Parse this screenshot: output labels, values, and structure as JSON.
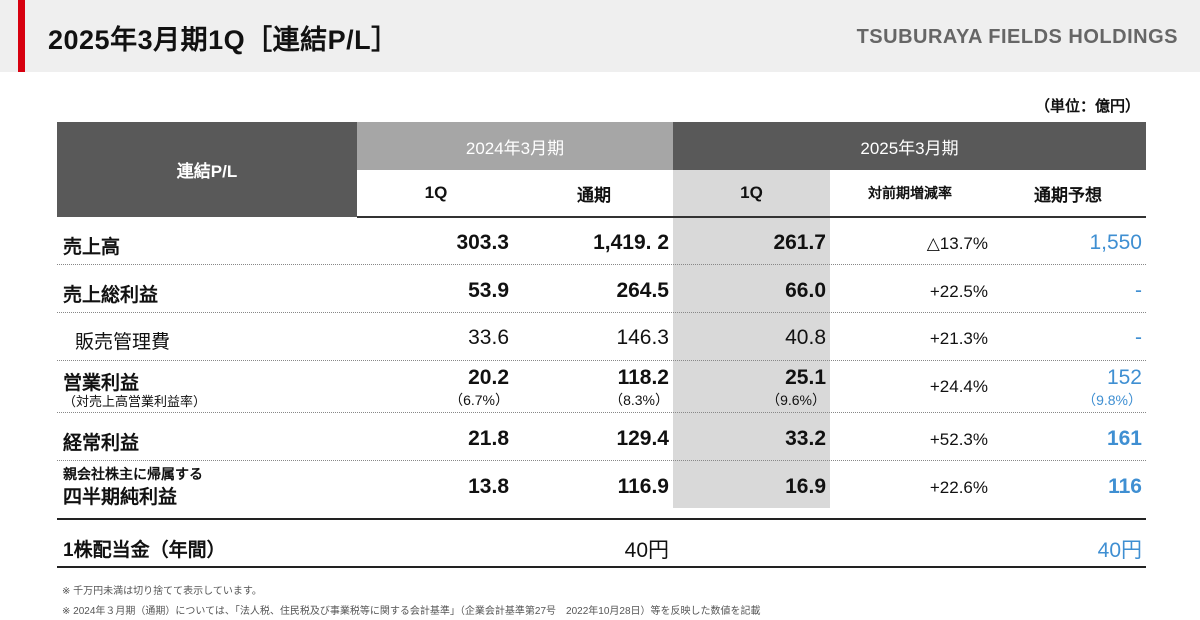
{
  "header": {
    "title": "2025年3月期1Q［連結P/L］",
    "brand": "TSUBURAYA FIELDS HOLDINGS"
  },
  "unit": "（単位：億円）",
  "table": {
    "corner": "連結P/L",
    "period_2024": "2024年3月期",
    "period_2025": "2025年3月期",
    "cols": {
      "q1_2024": "1Q",
      "full_2024": "通期",
      "q1_2025": "1Q",
      "yoy": "対前期増減率",
      "forecast": "通期予想"
    },
    "rows": {
      "sales": {
        "label": "売上高",
        "q1_2024": "303.3",
        "full_2024": "1,419. 2",
        "q1_2025": "261.7",
        "yoy": "△13.7%",
        "forecast": "1,550"
      },
      "gross": {
        "label": "売上総利益",
        "q1_2024": "53.9",
        "full_2024": "264.5",
        "q1_2025": "66.0",
        "yoy": "+22.5%",
        "forecast": "-"
      },
      "sga": {
        "label": "販売管理費",
        "q1_2024": "33.6",
        "full_2024": "146.3",
        "q1_2025": "40.8",
        "yoy": "+21.3%",
        "forecast": "-"
      },
      "operating": {
        "label": "営業利益",
        "note": "（対売上高営業利益率）",
        "q1_2024": "20.2",
        "q1_2024_rate": "（6.7%）",
        "full_2024": "118.2",
        "full_2024_rate": "（8.3%）",
        "q1_2025": "25.1",
        "q1_2025_rate": "（9.6%）",
        "yoy": "+24.4%",
        "forecast": "152",
        "forecast_rate": "（9.8%）"
      },
      "ordinary": {
        "label": "経常利益",
        "q1_2024": "21.8",
        "full_2024": "129.4",
        "q1_2025": "33.2",
        "yoy": "+52.3%",
        "forecast": "161"
      },
      "net": {
        "label_top": "親会社株主に帰属する",
        "label": "四半期純利益",
        "q1_2024": "13.8",
        "full_2024": "116.9",
        "q1_2025": "16.9",
        "yoy": "+22.6%",
        "forecast": "116"
      },
      "dividend": {
        "label": "1株配当金（年間）",
        "full_2024": "40円",
        "forecast": "40円"
      }
    }
  },
  "footnotes": [
    "※ 千万円未満は切り捨てて表示しています。",
    "※ 2024年３月期（通期）については、「法人税、住民税及び事業税等に関する会計基準」（企業会計基準第27号　2022年10月28日）等を反映した数値を記載"
  ],
  "colors": {
    "accent": "#d7000f",
    "header_dark": "#595959",
    "header_light": "#a6a6a6",
    "highlight_col": "#d9d9d9",
    "forecast_blue": "#3f8fd2"
  }
}
